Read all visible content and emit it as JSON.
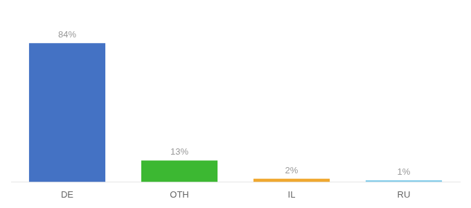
{
  "chart_data": {
    "type": "bar",
    "categories": [
      "DE",
      "OTH",
      "IL",
      "RU"
    ],
    "values": [
      84,
      13,
      2,
      1
    ],
    "value_labels": [
      "84%",
      "13%",
      "2%",
      "1%"
    ],
    "data_labels": true,
    "colors": [
      "#4472c4",
      "#3cb832",
      "#f0a830",
      "#87ceeb"
    ],
    "ylim": [
      0,
      100
    ],
    "grid": false,
    "tick_labels": "x"
  }
}
